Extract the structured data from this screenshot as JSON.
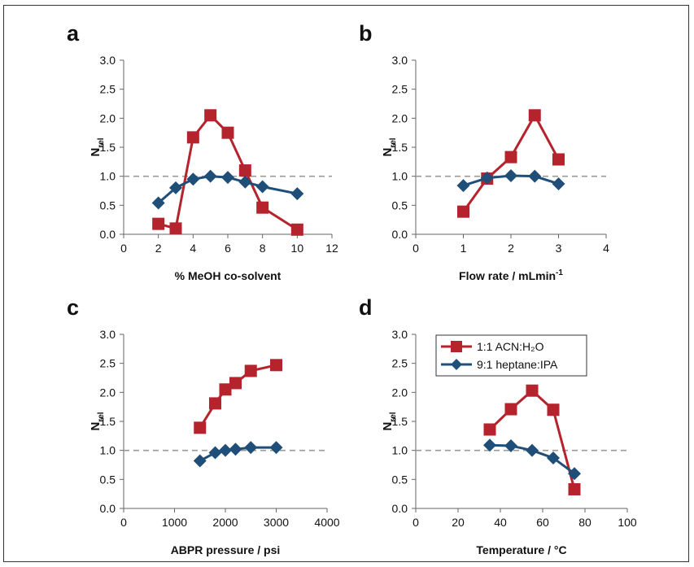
{
  "colors": {
    "red": "#b5232d",
    "blue": "#1f4e79",
    "ref": "#9a9a9a"
  },
  "legend": {
    "s1": "1:1 ACN:H₂O",
    "s2": "9:1 heptane:IPA"
  },
  "chart_data": [
    {
      "panel": "a",
      "type": "line",
      "xlabel": "% MeOH co-solvent",
      "ylabel": "Nrel",
      "xlim": [
        0,
        12
      ],
      "xticks": [
        0,
        2,
        4,
        6,
        8,
        10,
        12
      ],
      "ylim": [
        0,
        3
      ],
      "yticks": [
        "0.0",
        "0.5",
        "1.0",
        "1.5",
        "2.0",
        "2.5",
        "3.0"
      ],
      "reference_line": 1.0,
      "series": [
        {
          "name": "1:1 ACN:H₂O",
          "marker": "square",
          "color": "#b5232d",
          "x": [
            2,
            3,
            4,
            5,
            6,
            7,
            8,
            10
          ],
          "y": [
            0.18,
            0.1,
            1.67,
            2.05,
            1.75,
            1.1,
            0.46,
            0.08
          ]
        },
        {
          "name": "9:1 heptane:IPA",
          "marker": "diamond",
          "color": "#1f4e79",
          "x": [
            2,
            3,
            4,
            5,
            6,
            7,
            8,
            10
          ],
          "y": [
            0.54,
            0.8,
            0.95,
            1.0,
            0.98,
            0.9,
            0.82,
            0.7
          ]
        }
      ]
    },
    {
      "panel": "b",
      "type": "line",
      "xlabel": "Flow rate / mLmin",
      "xlabel_sup": "-1",
      "ylabel": "Nrel",
      "xlim": [
        0,
        4
      ],
      "xticks": [
        0,
        1,
        2,
        3,
        4
      ],
      "ylim": [
        0,
        3
      ],
      "yticks": [
        "0.0",
        "0.5",
        "1.0",
        "1.5",
        "2.0",
        "2.5",
        "3.0"
      ],
      "reference_line": 1.0,
      "series": [
        {
          "name": "1:1 ACN:H₂O",
          "marker": "square",
          "color": "#b5232d",
          "x": [
            1,
            1.5,
            2,
            2.5,
            3
          ],
          "y": [
            0.39,
            0.96,
            1.33,
            2.05,
            1.29
          ]
        },
        {
          "name": "9:1 heptane:IPA",
          "marker": "diamond",
          "color": "#1f4e79",
          "x": [
            1,
            1.5,
            2,
            2.5,
            3
          ],
          "y": [
            0.84,
            0.97,
            1.01,
            1.0,
            0.87
          ]
        }
      ]
    },
    {
      "panel": "c",
      "type": "line",
      "xlabel": "ABPR pressure / psi",
      "ylabel": "Nrel",
      "xlim": [
        0,
        4000
      ],
      "xticks": [
        0,
        1000,
        2000,
        3000,
        4000
      ],
      "ylim": [
        0,
        3
      ],
      "yticks": [
        "0.0",
        "0.5",
        "1.0",
        "1.5",
        "2.0",
        "2.5",
        "3.0"
      ],
      "reference_line": 1.0,
      "series": [
        {
          "name": "1:1 ACN:H₂O",
          "marker": "square",
          "color": "#b5232d",
          "x": [
            1500,
            1800,
            2000,
            2200,
            2500,
            3000
          ],
          "y": [
            1.39,
            1.81,
            2.05,
            2.16,
            2.37,
            2.47
          ]
        },
        {
          "name": "9:1 heptane:IPA",
          "marker": "diamond",
          "color": "#1f4e79",
          "x": [
            1500,
            1800,
            2000,
            2200,
            2500,
            3000
          ],
          "y": [
            0.82,
            0.96,
            1.0,
            1.02,
            1.05,
            1.05
          ]
        }
      ]
    },
    {
      "panel": "d",
      "type": "line",
      "xlabel": "Temperature / °C",
      "ylabel": "Nrel",
      "xlim": [
        0,
        100
      ],
      "xticks": [
        0,
        20,
        40,
        60,
        80,
        100
      ],
      "ylim": [
        0,
        3
      ],
      "yticks": [
        "0.0",
        "0.5",
        "1.0",
        "1.5",
        "2.0",
        "2.5",
        "3.0"
      ],
      "reference_line": 1.0,
      "legend_position": "top-left",
      "series": [
        {
          "name": "1:1 ACN:H₂O",
          "marker": "square",
          "color": "#b5232d",
          "x": [
            35,
            45,
            55,
            65,
            75
          ],
          "y": [
            1.36,
            1.71,
            2.03,
            1.7,
            0.33
          ]
        },
        {
          "name": "9:1 heptane:IPA",
          "marker": "diamond",
          "color": "#1f4e79",
          "x": [
            35,
            45,
            55,
            65,
            75
          ],
          "y": [
            1.09,
            1.08,
            1.0,
            0.87,
            0.6
          ]
        }
      ]
    }
  ]
}
